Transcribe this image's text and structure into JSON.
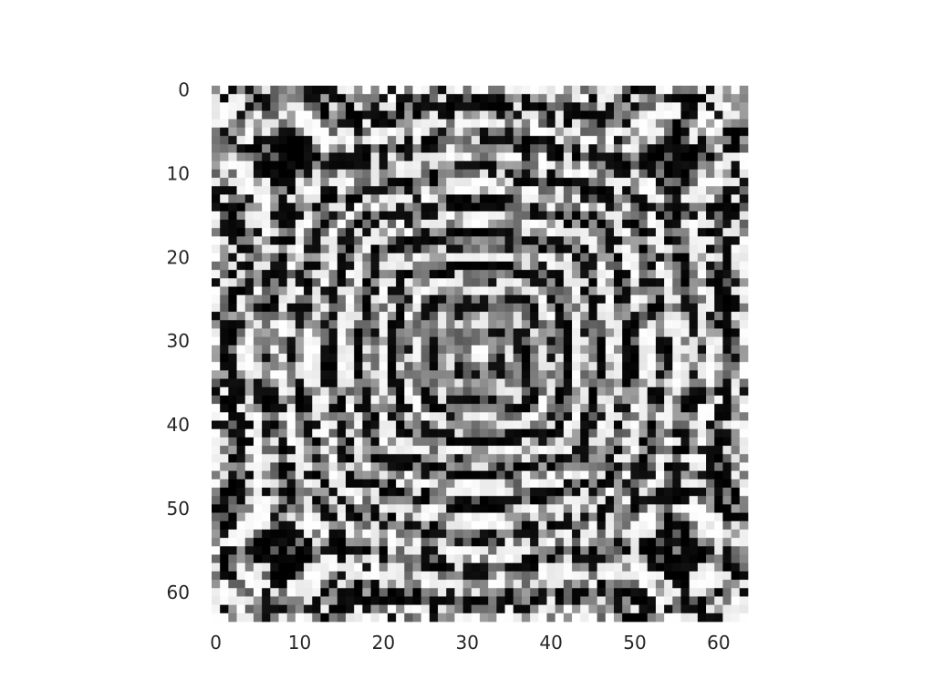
{
  "chart_data": {
    "type": "heatmap",
    "title": "",
    "xlabel": "",
    "ylabel": "",
    "colormap": "gray",
    "grid": false,
    "rows": 64,
    "cols": 64,
    "xlim": [
      -0.5,
      63.5
    ],
    "ylim": [
      63.5,
      -0.5
    ],
    "x_ticks": [
      0,
      10,
      20,
      30,
      40,
      50,
      60
    ],
    "y_ticks": [
      0,
      10,
      20,
      30,
      40,
      50,
      60
    ],
    "x_tick_labels": [
      "0",
      "10",
      "20",
      "30",
      "40",
      "50",
      "60"
    ],
    "y_tick_labels": [
      "0",
      "10",
      "20",
      "30",
      "40",
      "50",
      "60"
    ],
    "pattern": {
      "description": "Symmetric interference pattern (64x64 grayscale image), cos((x^2+y^2)/k) type with 4-fold symmetry",
      "center": [
        31.5,
        31.5
      ],
      "value_range": [
        0,
        1
      ]
    }
  }
}
